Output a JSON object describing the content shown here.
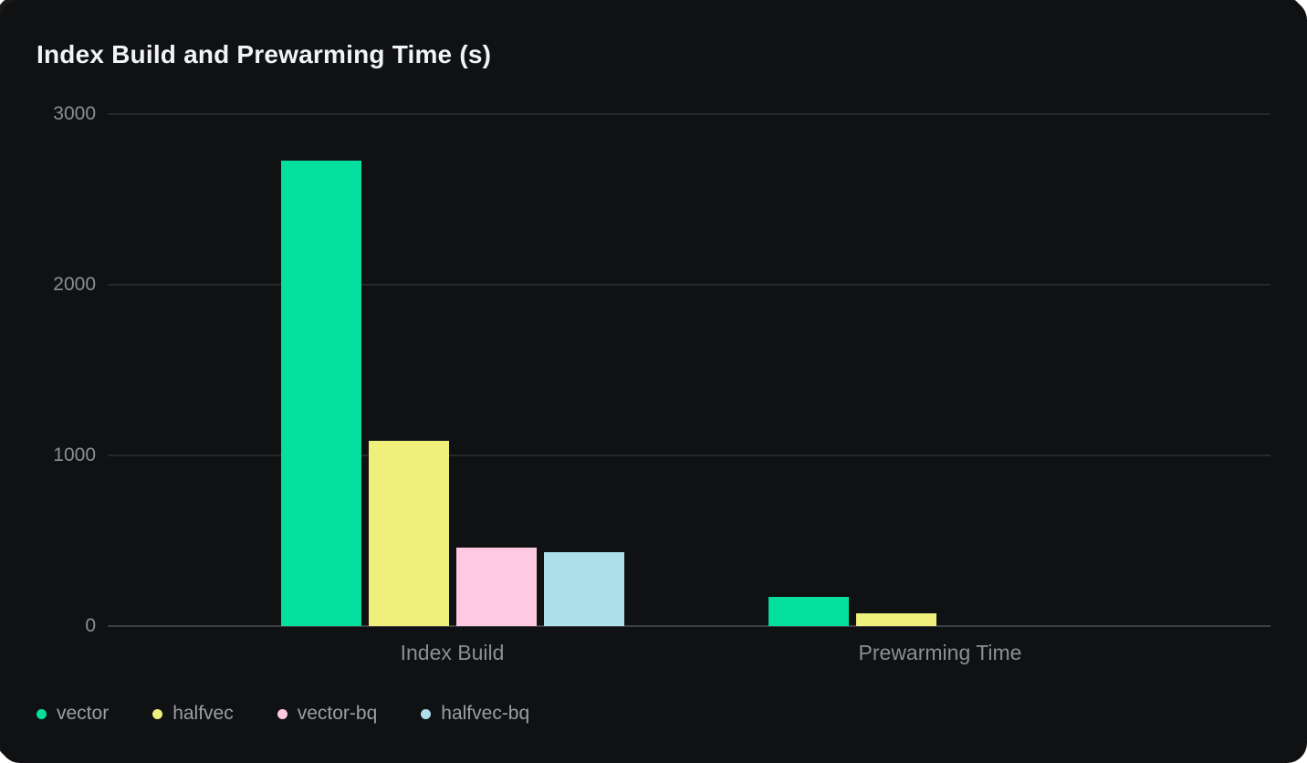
{
  "card": {
    "title": "Index Build and Prewarming Time (s)"
  },
  "chart_data": {
    "type": "bar",
    "title": "Index Build and Prewarming Time (s)",
    "unit": "s",
    "categories": [
      "Index Build",
      "Prewarming Time"
    ],
    "series": [
      {
        "name": "vector",
        "color": "#05DF9D",
        "values": [
          2730,
          171
        ]
      },
      {
        "name": "halfvec",
        "color": "#EFF07C",
        "values": [
          1085,
          76
        ]
      },
      {
        "name": "vector-bq",
        "color": "#FFCAE1",
        "values": [
          460,
          0
        ]
      },
      {
        "name": "halfvec-bq",
        "color": "#ADE0EA",
        "values": [
          433,
          0
        ]
      }
    ],
    "ylim": [
      0,
      3000
    ],
    "yticks": [
      0,
      1000,
      2000,
      3000
    ],
    "ytick_labels": [
      "0",
      "1000",
      "2000",
      "3000"
    ],
    "grid": true,
    "legend_position": "bottom-left",
    "background_color": "#101113",
    "text_color": "#8b8e94",
    "title_color": "#f2f3f4"
  }
}
